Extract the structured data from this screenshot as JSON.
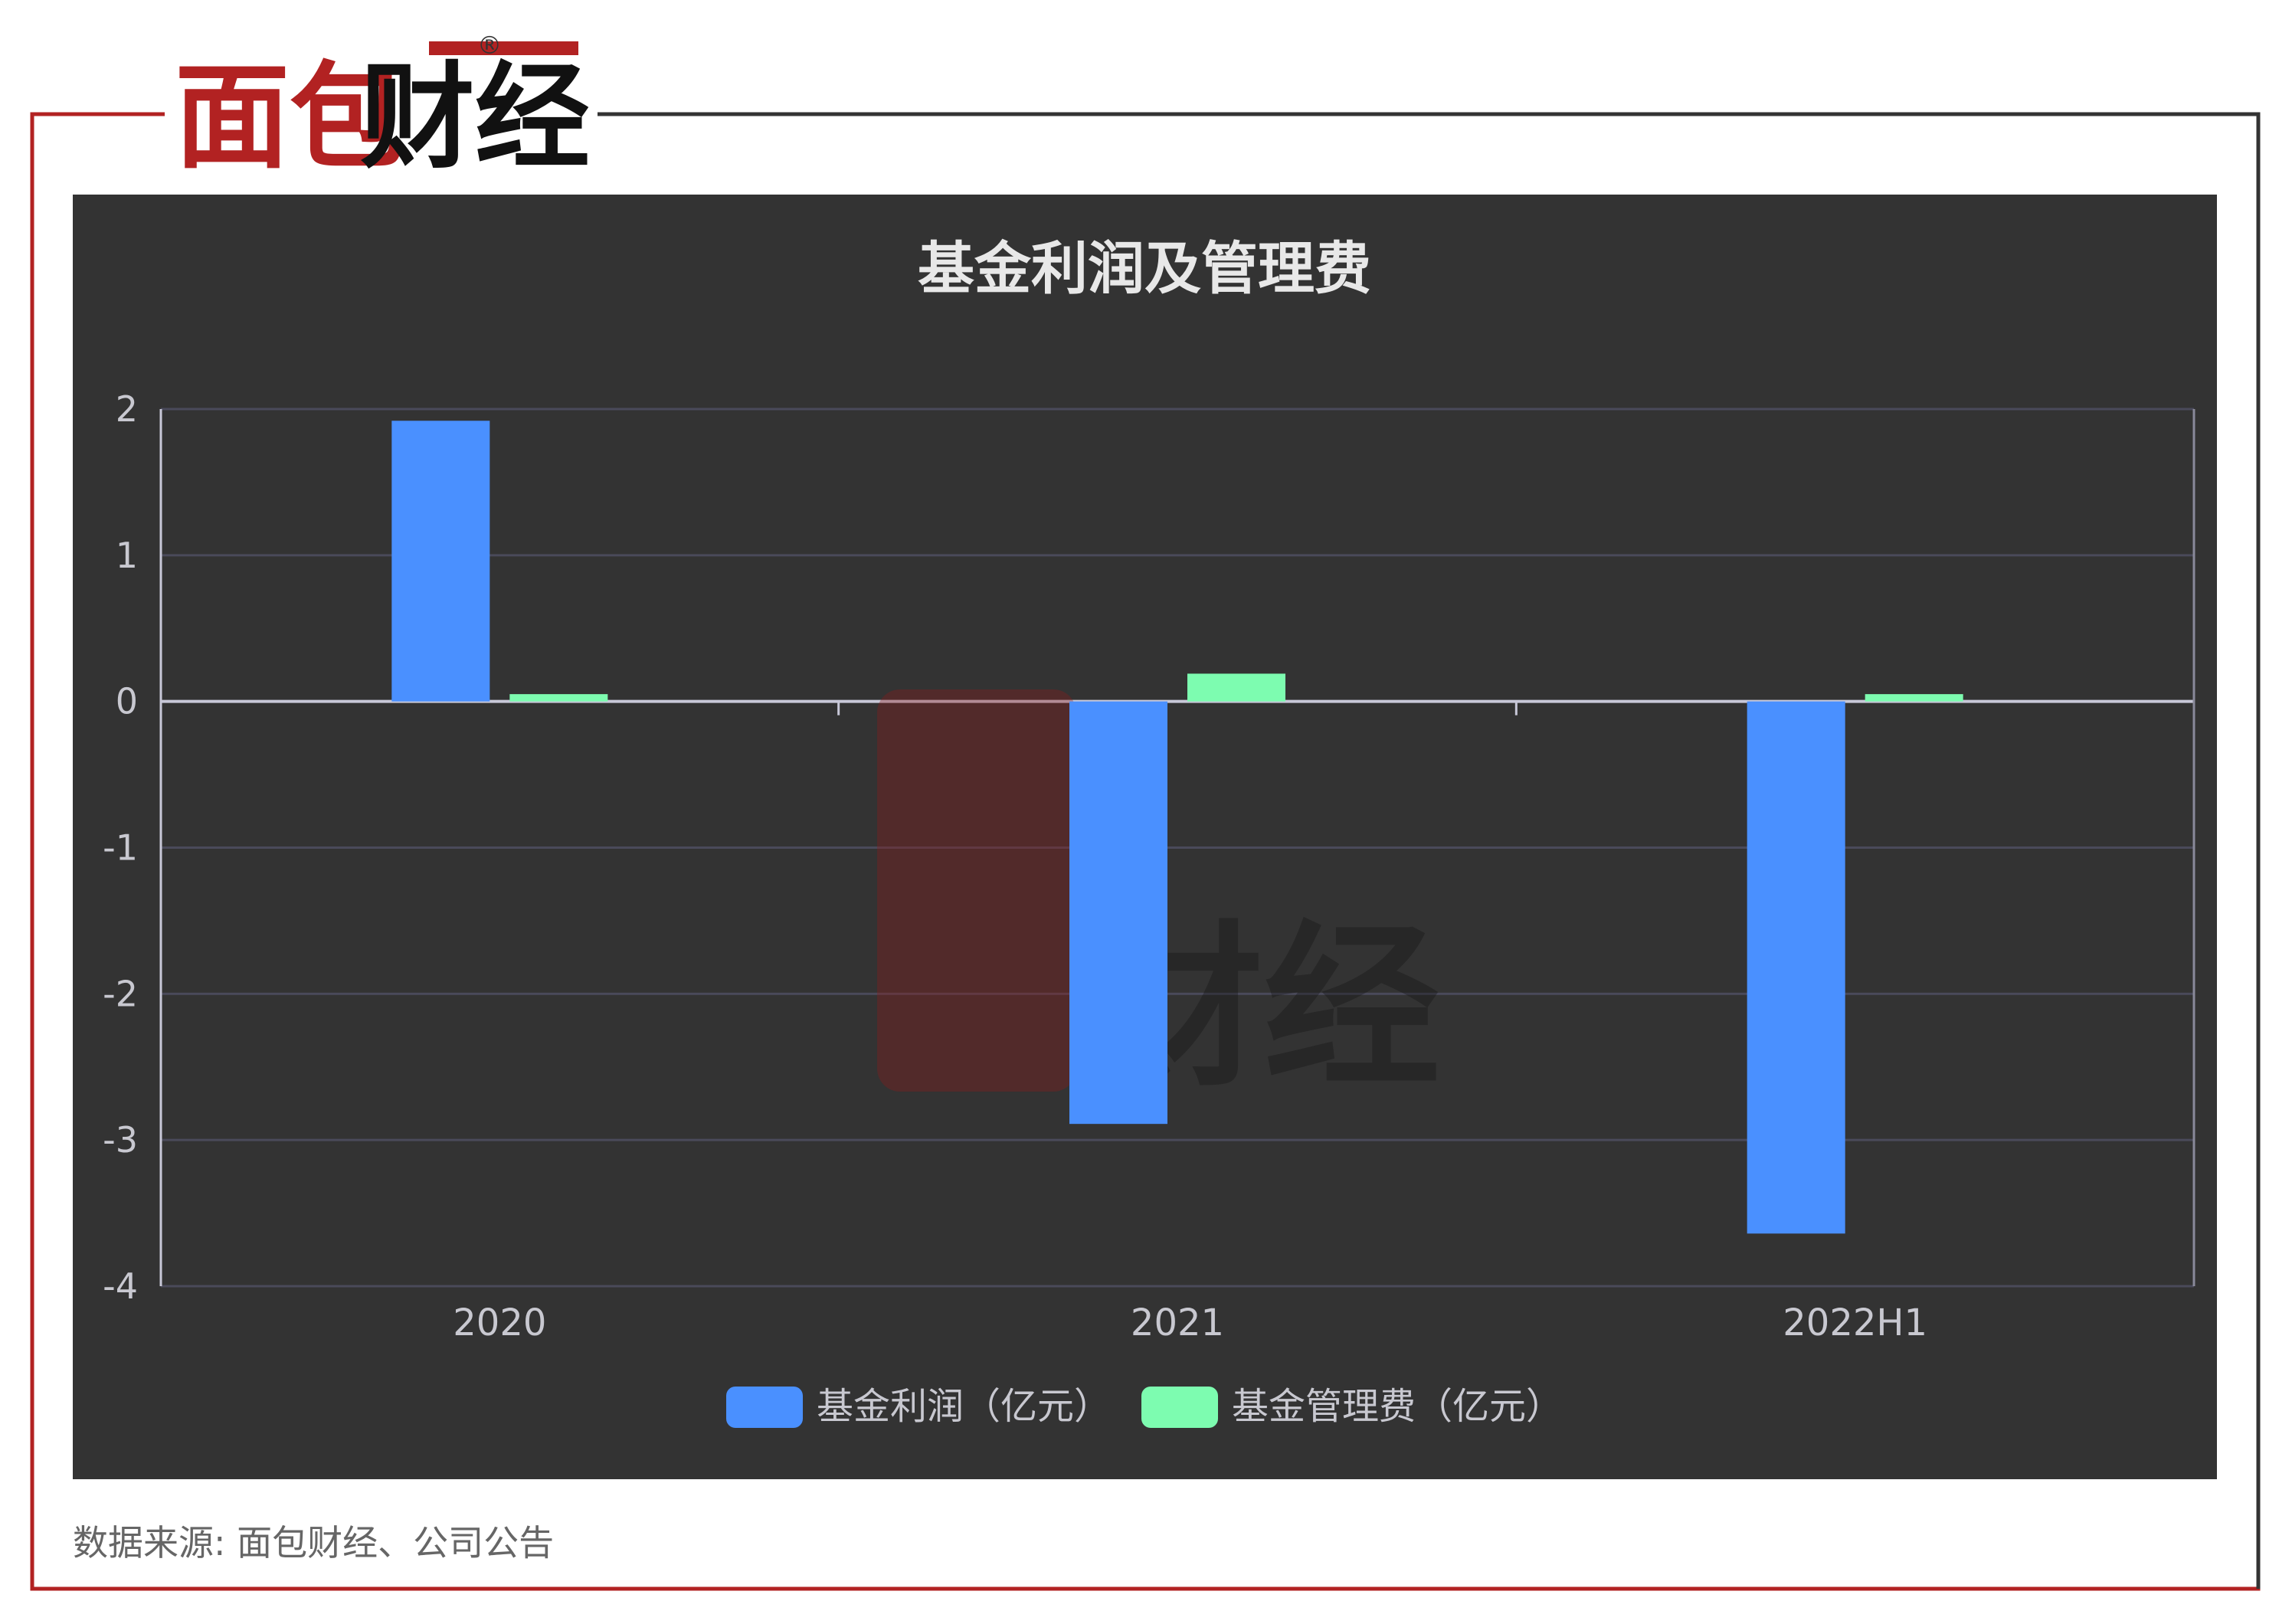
{
  "brand": {
    "logo_text": "面包财经",
    "registered": "®",
    "accent": "#b22222"
  },
  "source": "数据来源: 面包财经、公司公告",
  "chart_data": {
    "type": "bar",
    "title": "基金利润及管理费",
    "categories": [
      "2020",
      "2021",
      "2022H1"
    ],
    "series": [
      {
        "name": "基金利润（亿元）",
        "color": "#4a90ff",
        "values": [
          1.92,
          -2.89,
          -3.64
        ]
      },
      {
        "name": "基金管理费（亿元）",
        "color": "#7dfcb0",
        "values": [
          0.05,
          0.19,
          0.05
        ]
      }
    ],
    "ylim": [
      -4,
      2
    ],
    "yticks": [
      "2",
      "1",
      "0",
      "-1",
      "-2",
      "-3",
      "-4"
    ],
    "grid": true,
    "legend": "bottom",
    "background": "#333333"
  }
}
